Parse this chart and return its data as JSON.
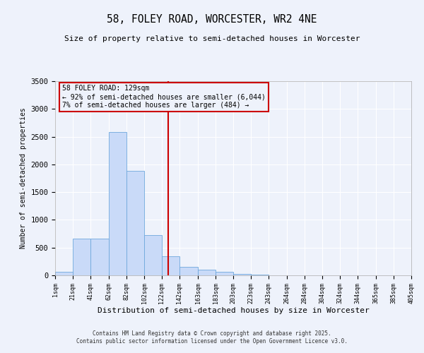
{
  "title_line1": "58, FOLEY ROAD, WORCESTER, WR2 4NE",
  "title_line2": "Size of property relative to semi-detached houses in Worcester",
  "xlabel": "Distribution of semi-detached houses by size in Worcester",
  "ylabel": "Number of semi-detached properties",
  "annotation_title": "58 FOLEY ROAD: 129sqm",
  "annotation_line2": "← 92% of semi-detached houses are smaller (6,044)",
  "annotation_line3": "7% of semi-detached houses are larger (484) →",
  "property_size": 129,
  "bin_edges": [
    1,
    21,
    41,
    62,
    82,
    102,
    122,
    142,
    163,
    183,
    203,
    223,
    243,
    264,
    284,
    304,
    324,
    344,
    365,
    385,
    405
  ],
  "bin_labels": [
    "1sqm",
    "21sqm",
    "41sqm",
    "62sqm",
    "82sqm",
    "102sqm",
    "122sqm",
    "142sqm",
    "163sqm",
    "183sqm",
    "203sqm",
    "223sqm",
    "243sqm",
    "264sqm",
    "284sqm",
    "304sqm",
    "324sqm",
    "344sqm",
    "365sqm",
    "385sqm",
    "405sqm"
  ],
  "counts": [
    60,
    660,
    660,
    2580,
    1880,
    720,
    340,
    155,
    100,
    70,
    30,
    10,
    5,
    0,
    0,
    5,
    0,
    0,
    0,
    0
  ],
  "bar_color": "#c9daf8",
  "bar_edge_color": "#6fa8dc",
  "vline_color": "#cc0000",
  "vline_x": 129,
  "ylim": [
    0,
    3500
  ],
  "yticks": [
    0,
    500,
    1000,
    1500,
    2000,
    2500,
    3000,
    3500
  ],
  "background_color": "#eef2fb",
  "grid_color": "#ffffff",
  "annotation_box_color": "#cc0000",
  "footer_line1": "Contains HM Land Registry data © Crown copyright and database right 2025.",
  "footer_line2": "Contains public sector information licensed under the Open Government Licence v3.0."
}
